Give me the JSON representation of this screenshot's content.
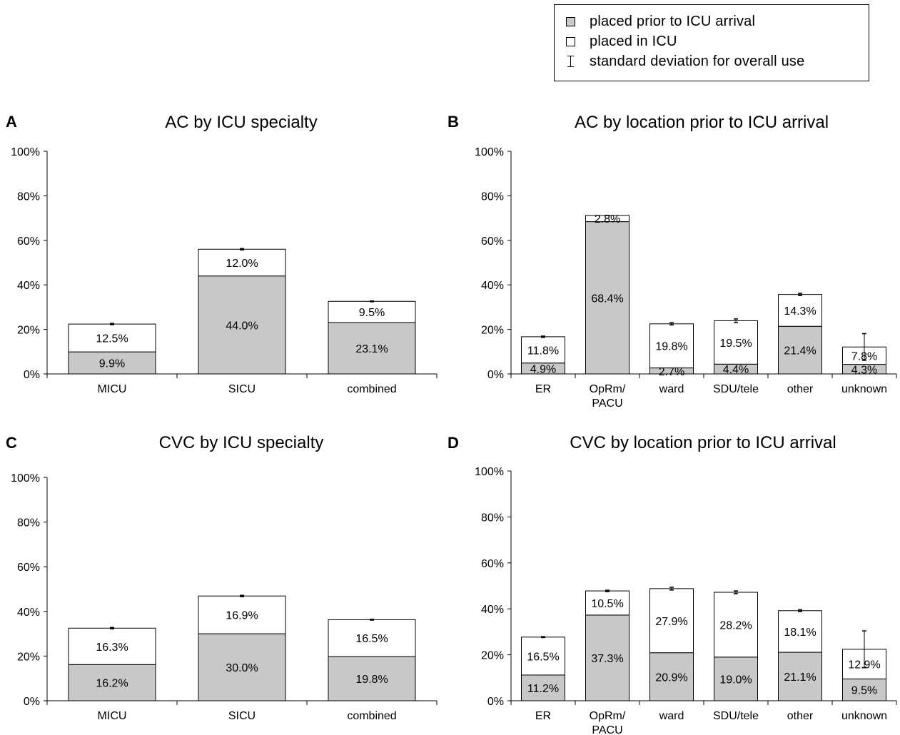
{
  "legend": {
    "prior_label": "placed prior to ICU arrival",
    "icu_label": "placed in ICU",
    "sd_label": "standard deviation for overall use",
    "prior_color": "#c8c8c8",
    "icu_color": "#ffffff"
  },
  "chart_data": [
    {
      "panel_letter": "A",
      "title": "AC by ICU specialty",
      "type": "bar",
      "stacked": true,
      "categories": [
        "MICU",
        "SICU",
        "combined"
      ],
      "series": [
        {
          "name": "placed prior to ICU arrival",
          "values": [
            9.9,
            44.0,
            23.1
          ]
        },
        {
          "name": "placed in ICU",
          "values": [
            12.5,
            12.0,
            9.5
          ]
        }
      ],
      "error": [
        0.3,
        0.3,
        0.2
      ],
      "ylim": [
        0,
        100
      ],
      "yticks": [
        "0%",
        "20%",
        "40%",
        "60%",
        "80%",
        "100%"
      ]
    },
    {
      "panel_letter": "B",
      "title": "AC by location prior to ICU arrival",
      "type": "bar",
      "stacked": true,
      "categories": [
        "ER",
        "OpRm/\nPACU",
        "ward",
        "SDU/tele",
        "other",
        "unknown"
      ],
      "series": [
        {
          "name": "placed prior to ICU arrival",
          "values": [
            4.9,
            68.4,
            2.7,
            4.4,
            21.4,
            4.3
          ]
        },
        {
          "name": "placed in ICU",
          "values": [
            11.8,
            2.8,
            19.8,
            19.5,
            14.3,
            7.8
          ]
        }
      ],
      "error": [
        0.3,
        0.0,
        0.5,
        0.8,
        0.5,
        6.0
      ],
      "ylim": [
        0,
        100
      ],
      "yticks": [
        "0%",
        "20%",
        "40%",
        "60%",
        "80%",
        "100%"
      ]
    },
    {
      "panel_letter": "C",
      "title": "CVC by ICU specialty",
      "type": "bar",
      "stacked": true,
      "categories": [
        "MICU",
        "SICU",
        "combined"
      ],
      "series": [
        {
          "name": "placed prior to ICU arrival",
          "values": [
            16.2,
            30.0,
            19.8
          ]
        },
        {
          "name": "placed in ICU",
          "values": [
            16.3,
            16.9,
            16.5
          ]
        }
      ],
      "error": [
        0.3,
        0.3,
        0.2
      ],
      "ylim": [
        0,
        100
      ],
      "yticks": [
        "0%",
        "20%",
        "40%",
        "60%",
        "80%",
        "100%"
      ]
    },
    {
      "panel_letter": "D",
      "title": "CVC by location prior to ICU arrival",
      "type": "bar",
      "stacked": true,
      "categories": [
        "ER",
        "OpRm/\nPACU",
        "ward",
        "SDU/tele",
        "other",
        "unknown"
      ],
      "series": [
        {
          "name": "placed prior to ICU arrival",
          "values": [
            11.2,
            37.3,
            20.9,
            19.0,
            21.1,
            9.5
          ]
        },
        {
          "name": "placed in ICU",
          "values": [
            16.5,
            10.5,
            27.9,
            28.2,
            18.1,
            12.9
          ]
        }
      ],
      "error": [
        0.2,
        0.3,
        0.6,
        0.6,
        0.4,
        8.0
      ],
      "ylim": [
        0,
        100
      ],
      "yticks": [
        "0%",
        "20%",
        "40%",
        "60%",
        "80%",
        "100%"
      ]
    }
  ]
}
